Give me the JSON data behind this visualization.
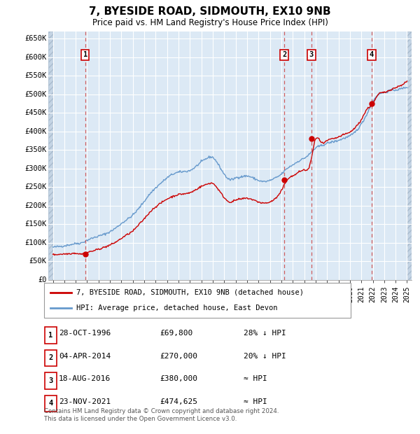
{
  "title": "7, BYESIDE ROAD, SIDMOUTH, EX10 9NB",
  "subtitle": "Price paid vs. HM Land Registry's House Price Index (HPI)",
  "background_color": "#dce9f5",
  "hatch_bg_color": "#c8d4e0",
  "grid_color": "#ffffff",
  "ylim": [
    0,
    670000
  ],
  "xlim_start": 1993.6,
  "xlim_end": 2025.4,
  "yticks": [
    0,
    50000,
    100000,
    150000,
    200000,
    250000,
    300000,
    350000,
    400000,
    450000,
    500000,
    550000,
    600000,
    650000
  ],
  "ytick_labels": [
    "£0",
    "£50K",
    "£100K",
    "£150K",
    "£200K",
    "£250K",
    "£300K",
    "£350K",
    "£400K",
    "£450K",
    "£500K",
    "£550K",
    "£600K",
    "£650K"
  ],
  "transactions": [
    {
      "date_num": 1996.83,
      "price": 69800,
      "label": "1"
    },
    {
      "date_num": 2014.25,
      "price": 270000,
      "label": "2"
    },
    {
      "date_num": 2016.63,
      "price": 380000,
      "label": "3"
    },
    {
      "date_num": 2021.9,
      "price": 474625,
      "label": "4"
    }
  ],
  "transaction_info": [
    {
      "label": "1",
      "date": "28-OCT-1996",
      "price": "£69,800",
      "vs_hpi": "28% ↓ HPI"
    },
    {
      "label": "2",
      "date": "04-APR-2014",
      "price": "£270,000",
      "vs_hpi": "20% ↓ HPI"
    },
    {
      "label": "3",
      "date": "18-AUG-2016",
      "price": "£380,000",
      "vs_hpi": "≈ HPI"
    },
    {
      "label": "4",
      "date": "23-NOV-2021",
      "price": "£474,625",
      "vs_hpi": "≈ HPI"
    }
  ],
  "legend_house": "7, BYESIDE ROAD, SIDMOUTH, EX10 9NB (detached house)",
  "legend_hpi": "HPI: Average price, detached house, East Devon",
  "footer": "Contains HM Land Registry data © Crown copyright and database right 2024.\nThis data is licensed under the Open Government Licence v3.0.",
  "house_color": "#cc0000",
  "hpi_color": "#6699cc",
  "marker_color": "#cc0000",
  "vline_color": "#cc4444",
  "box_color": "#cc0000",
  "hpi_data": {
    "years": [
      1994,
      1994.5,
      1995,
      1995.5,
      1996,
      1996.5,
      1997,
      1997.5,
      1998,
      1998.5,
      1999,
      1999.5,
      2000,
      2000.5,
      2001,
      2001.5,
      2002,
      2002.5,
      2003,
      2003.5,
      2004,
      2004.5,
      2005,
      2005.5,
      2006,
      2006.5,
      2007,
      2007.5,
      2008,
      2008.5,
      2009,
      2009.5,
      2010,
      2010.5,
      2011,
      2011.5,
      2012,
      2012.5,
      2013,
      2013.5,
      2014,
      2014.5,
      2015,
      2015.5,
      2016,
      2016.5,
      2017,
      2017.5,
      2018,
      2018.5,
      2019,
      2019.5,
      2020,
      2020.5,
      2021,
      2021.5,
      2022,
      2022.5,
      2023,
      2023.5,
      2024,
      2024.5,
      2025
    ],
    "values": [
      88000,
      90000,
      92000,
      95000,
      98000,
      100000,
      107000,
      113000,
      118000,
      123000,
      130000,
      140000,
      152000,
      163000,
      175000,
      192000,
      212000,
      232000,
      248000,
      262000,
      275000,
      285000,
      290000,
      292000,
      295000,
      305000,
      318000,
      328000,
      330000,
      310000,
      285000,
      270000,
      275000,
      278000,
      280000,
      275000,
      268000,
      265000,
      268000,
      275000,
      285000,
      300000,
      310000,
      320000,
      328000,
      340000,
      355000,
      362000,
      368000,
      372000,
      376000,
      382000,
      388000,
      400000,
      420000,
      448000,
      480000,
      500000,
      505000,
      510000,
      512000,
      515000,
      520000
    ]
  },
  "house_data": {
    "years": [
      1994,
      1994.5,
      1995,
      1995.5,
      1996,
      1996.5,
      1997,
      1997.5,
      1998,
      1998.5,
      1999,
      1999.5,
      2000,
      2000.5,
      2001,
      2001.5,
      2002,
      2002.5,
      2003,
      2003.5,
      2004,
      2004.5,
      2005,
      2005.5,
      2006,
      2006.5,
      2007,
      2007.5,
      2008,
      2008.5,
      2009,
      2009.5,
      2010,
      2010.5,
      2011,
      2011.5,
      2012,
      2012.5,
      2013,
      2013.5,
      2014,
      2014.5,
      2015,
      2015.5,
      2016,
      2016.5,
      2017,
      2017.5,
      2018,
      2018.5,
      2019,
      2019.5,
      2020,
      2020.5,
      2021,
      2021.5,
      2022,
      2022.5,
      2023,
      2023.5,
      2024,
      2024.5,
      2025
    ],
    "values": [
      68000,
      69000,
      70000,
      71000,
      72000,
      69800,
      74000,
      78000,
      83000,
      88000,
      94000,
      102000,
      112000,
      122000,
      132000,
      148000,
      165000,
      183000,
      197000,
      208000,
      218000,
      225000,
      230000,
      232000,
      235000,
      243000,
      252000,
      258000,
      260000,
      243000,
      222000,
      210000,
      215000,
      218000,
      220000,
      216000,
      210000,
      207000,
      210000,
      220000,
      240000,
      270000,
      280000,
      290000,
      296000,
      310000,
      380000,
      370000,
      375000,
      380000,
      385000,
      392000,
      398000,
      412000,
      432000,
      460000,
      474625,
      500000,
      505000,
      512000,
      518000,
      525000,
      535000
    ]
  }
}
